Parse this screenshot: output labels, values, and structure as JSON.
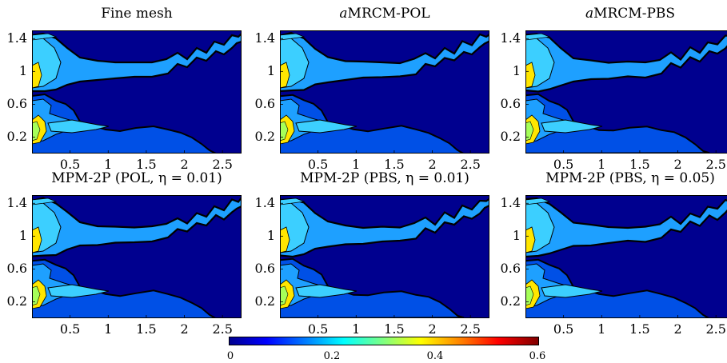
{
  "chart_data": {
    "type": "heatmap",
    "panels": [
      {
        "title": "Fine mesh",
        "title_italic": "",
        "title_rest": "",
        "variant": 0
      },
      {
        "title": "",
        "title_italic": "a",
        "title_rest": "MRCM-POL",
        "variant": 1
      },
      {
        "title": "",
        "title_italic": "a",
        "title_rest": "MRCM-PBS",
        "variant": 2
      },
      {
        "title": "MPM-2P (POL, η = 0.01)",
        "title_italic": "",
        "title_rest": "",
        "variant": 3
      },
      {
        "title": "MPM-2P (PBS, η = 0.01)",
        "title_italic": "",
        "title_rest": "",
        "variant": 4
      },
      {
        "title": "MPM-2P (PBS, η = 0.05)",
        "title_italic": "",
        "title_rest": "",
        "variant": 5
      }
    ],
    "xlim": [
      0,
      2.75
    ],
    "ylim": [
      0,
      1.5
    ],
    "xticks": [
      "0.5",
      "1",
      "1.5",
      "2",
      "2.5"
    ],
    "xtick_values": [
      0.5,
      1,
      1.5,
      2,
      2.5
    ],
    "yticks": [
      "1.4",
      "1",
      "0.6",
      "0.2"
    ],
    "ytick_values": [
      1.4,
      1.0,
      0.6,
      0.2
    ],
    "colorbar": {
      "range": [
        0,
        0.6
      ],
      "ticks": [
        "0",
        "0.2",
        "0.4",
        "0.6"
      ],
      "tick_values": [
        0,
        0.2,
        0.4,
        0.6
      ],
      "colormap": "jet"
    },
    "colors": {
      "background": "#00008f",
      "level1": "#0050e6",
      "level2": "#1ea0ff",
      "level3": "#3ccfff",
      "level4": "#a6ff59",
      "level5": "#ffe600",
      "contour": "#000000"
    }
  }
}
